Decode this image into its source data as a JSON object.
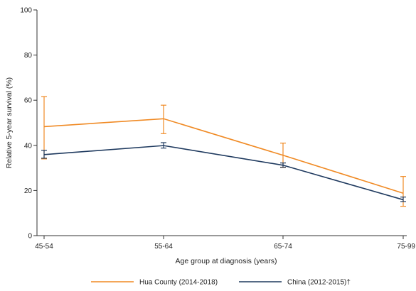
{
  "chart_data": {
    "type": "line",
    "title": "",
    "xlabel": "Age group at diagnosis (years)",
    "ylabel": "Relative 5-year survival (%)",
    "ylim": [
      0,
      100
    ],
    "yticks": [
      0,
      20,
      40,
      60,
      80,
      100
    ],
    "categories": [
      "45-54",
      "55-64",
      "65-74",
      "75-99"
    ],
    "grid": false,
    "legend_position": "bottom",
    "series": [
      {
        "name": "Hua County (2014-2018)",
        "color": "#f08a24",
        "values": [
          48.3,
          51.8,
          35.6,
          18.8
        ],
        "lower": [
          34.0,
          45.2,
          30.2,
          13.0
        ],
        "upper": [
          61.6,
          57.8,
          41.0,
          26.2
        ]
      },
      {
        "name": "China (2012-2015)†",
        "color": "#1f3a5f",
        "values": [
          35.9,
          39.9,
          31.2,
          15.9
        ],
        "lower": [
          34.3,
          38.8,
          30.3,
          15.1
        ],
        "upper": [
          37.8,
          41.2,
          32.2,
          17.1
        ]
      }
    ]
  }
}
